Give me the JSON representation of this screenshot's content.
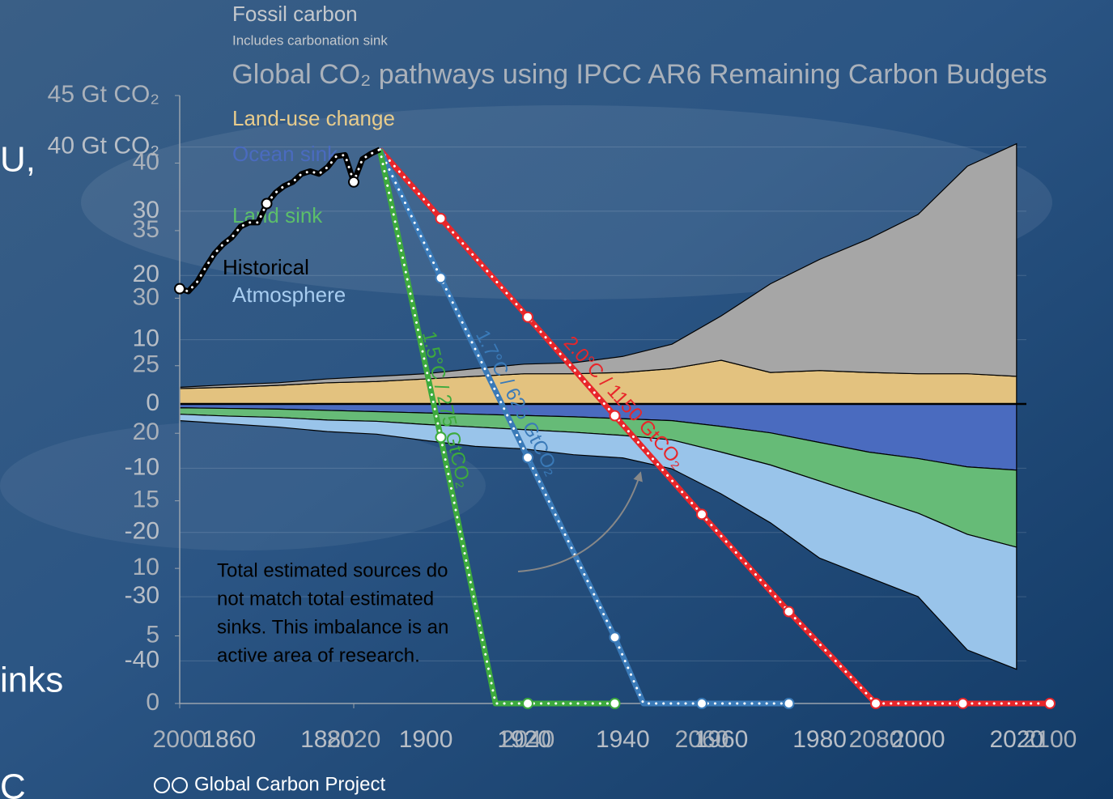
{
  "chart_data": [
    {
      "type": "area",
      "subtitle": "Includes carbonation sink",
      "x": [
        1850,
        1860,
        1870,
        1880,
        1890,
        1900,
        1910,
        1920,
        1930,
        1940,
        1950,
        1960,
        1970,
        1980,
        1990,
        2000,
        2010,
        2020
      ],
      "series": [
        {
          "name": "Land-use change",
          "color": "#e3c27f",
          "label_color": "#e8cc8c",
          "values": [
            2.4,
            2.6,
            2.9,
            3.3,
            3.5,
            3.9,
            4.3,
            4.7,
            4.7,
            4.9,
            5.5,
            6.8,
            4.9,
            5.2,
            4.9,
            4.7,
            4.7,
            4.3
          ]
        },
        {
          "name": "Fossil carbon",
          "color": "#a6a6a6",
          "label_color": "#c4c8cc",
          "values": [
            0.2,
            0.4,
            0.4,
            0.6,
            0.8,
            0.8,
            1.2,
            1.5,
            1.7,
            2.5,
            3.8,
            6.9,
            13.8,
            17.3,
            20.8,
            24.8,
            32.3,
            36.2
          ]
        },
        {
          "name": "Ocean sink",
          "color": "#4a6bbf",
          "label_color": "#4a6bbf",
          "values": [
            -0.6,
            -0.7,
            -0.8,
            -1.0,
            -1.2,
            -1.4,
            -1.6,
            -1.8,
            -2.0,
            -2.3,
            -2.6,
            -3.5,
            -4.5,
            -6.0,
            -7.5,
            -8.5,
            -9.8,
            -10.3
          ]
        },
        {
          "name": "Land sink",
          "color": "#66bb77",
          "label_color": "#5cbf6a",
          "values": [
            -1.0,
            -1.2,
            -1.3,
            -1.5,
            -1.5,
            -1.8,
            -2.0,
            -2.2,
            -2.4,
            -2.6,
            -3.0,
            -4.0,
            -5.0,
            -6.0,
            -7.0,
            -8.5,
            -10.5,
            -12.0
          ]
        },
        {
          "name": "Atmosphere",
          "color": "#99c4ea",
          "label_color": "#a8cdf0",
          "values": [
            -1.0,
            -1.2,
            -1.5,
            -1.8,
            -2.0,
            -2.5,
            -3.0,
            -3.0,
            -3.5,
            -3.5,
            -4.5,
            -6.5,
            -9.0,
            -12.0,
            -12.5,
            -13.0,
            -18.0,
            -19.0
          ]
        }
      ],
      "xlim": [
        1850,
        2022
      ],
      "xticks": [
        1860,
        1880,
        1900,
        1920,
        1940,
        1960,
        1980,
        2000,
        2020
      ],
      "ylim": [
        -46.5,
        46.5
      ],
      "yticks": [
        {
          "value": 40,
          "label": "40 Gt CO₂"
        },
        30,
        20,
        10,
        0,
        -10,
        -20,
        -30,
        -40
      ],
      "grid": true,
      "annotation": [
        "Total estimated sources do",
        "not match total estimated",
        "sinks. This imbalance is an",
        "active area of research."
      ]
    },
    {
      "type": "line",
      "title": "Global CO₂ pathways using IPCC AR6 Remaining Carbon Budgets",
      "series": [
        {
          "name": "Historical",
          "color": "#000000",
          "x": [
            2000,
            2001,
            2002,
            2003,
            2004,
            2005,
            2006,
            2007,
            2008,
            2009,
            2010,
            2011,
            2012,
            2013,
            2014,
            2015,
            2016,
            2017,
            2018,
            2019,
            2020,
            2021,
            2022,
            2023
          ],
          "values": [
            30.7,
            30.5,
            31.2,
            32.3,
            33.3,
            34.0,
            34.5,
            35.3,
            35.6,
            35.6,
            37.0,
            37.8,
            38.3,
            38.6,
            39.2,
            39.4,
            39.2,
            39.7,
            40.5,
            40.6,
            38.6,
            40.3,
            40.7,
            41.0
          ]
        },
        {
          "name": "1.5°C / 275 GtCO₂",
          "color": "#3daa3d",
          "x": [
            2023,
            2030,
            2036.3,
            2040,
            2050
          ],
          "values": [
            41.0,
            19.7,
            0,
            0,
            0
          ]
        },
        {
          "name": "1.7°C / 625 GtCO₂",
          "color": "#3a7ab8",
          "x": [
            2023,
            2030,
            2040,
            2050,
            2053.3,
            2060,
            2070
          ],
          "values": [
            41.0,
            31.5,
            18.2,
            4.9,
            0,
            0,
            0
          ]
        },
        {
          "name": "2.0°C / 1150 GtCO₂",
          "color": "#e8262a",
          "x": [
            2023,
            2030,
            2040,
            2050,
            2060,
            2070,
            2080,
            2090,
            2100
          ],
          "values": [
            41.0,
            35.9,
            28.6,
            21.3,
            14.0,
            6.8,
            0,
            0,
            0
          ]
        }
      ],
      "xlim": [
        2000,
        2100
      ],
      "xticks": [
        2000,
        2020,
        2040,
        2060,
        2080,
        2100
      ],
      "ylim": [
        0,
        45
      ],
      "yticks": [
        {
          "value": 45,
          "label": "45 Gt CO₂"
        },
        40,
        35,
        30,
        25,
        20,
        15,
        10,
        5,
        0
      ]
    }
  ],
  "slide_fragments": [
    "U,",
    "inks",
    "C"
  ],
  "footer": "Global Carbon Project"
}
